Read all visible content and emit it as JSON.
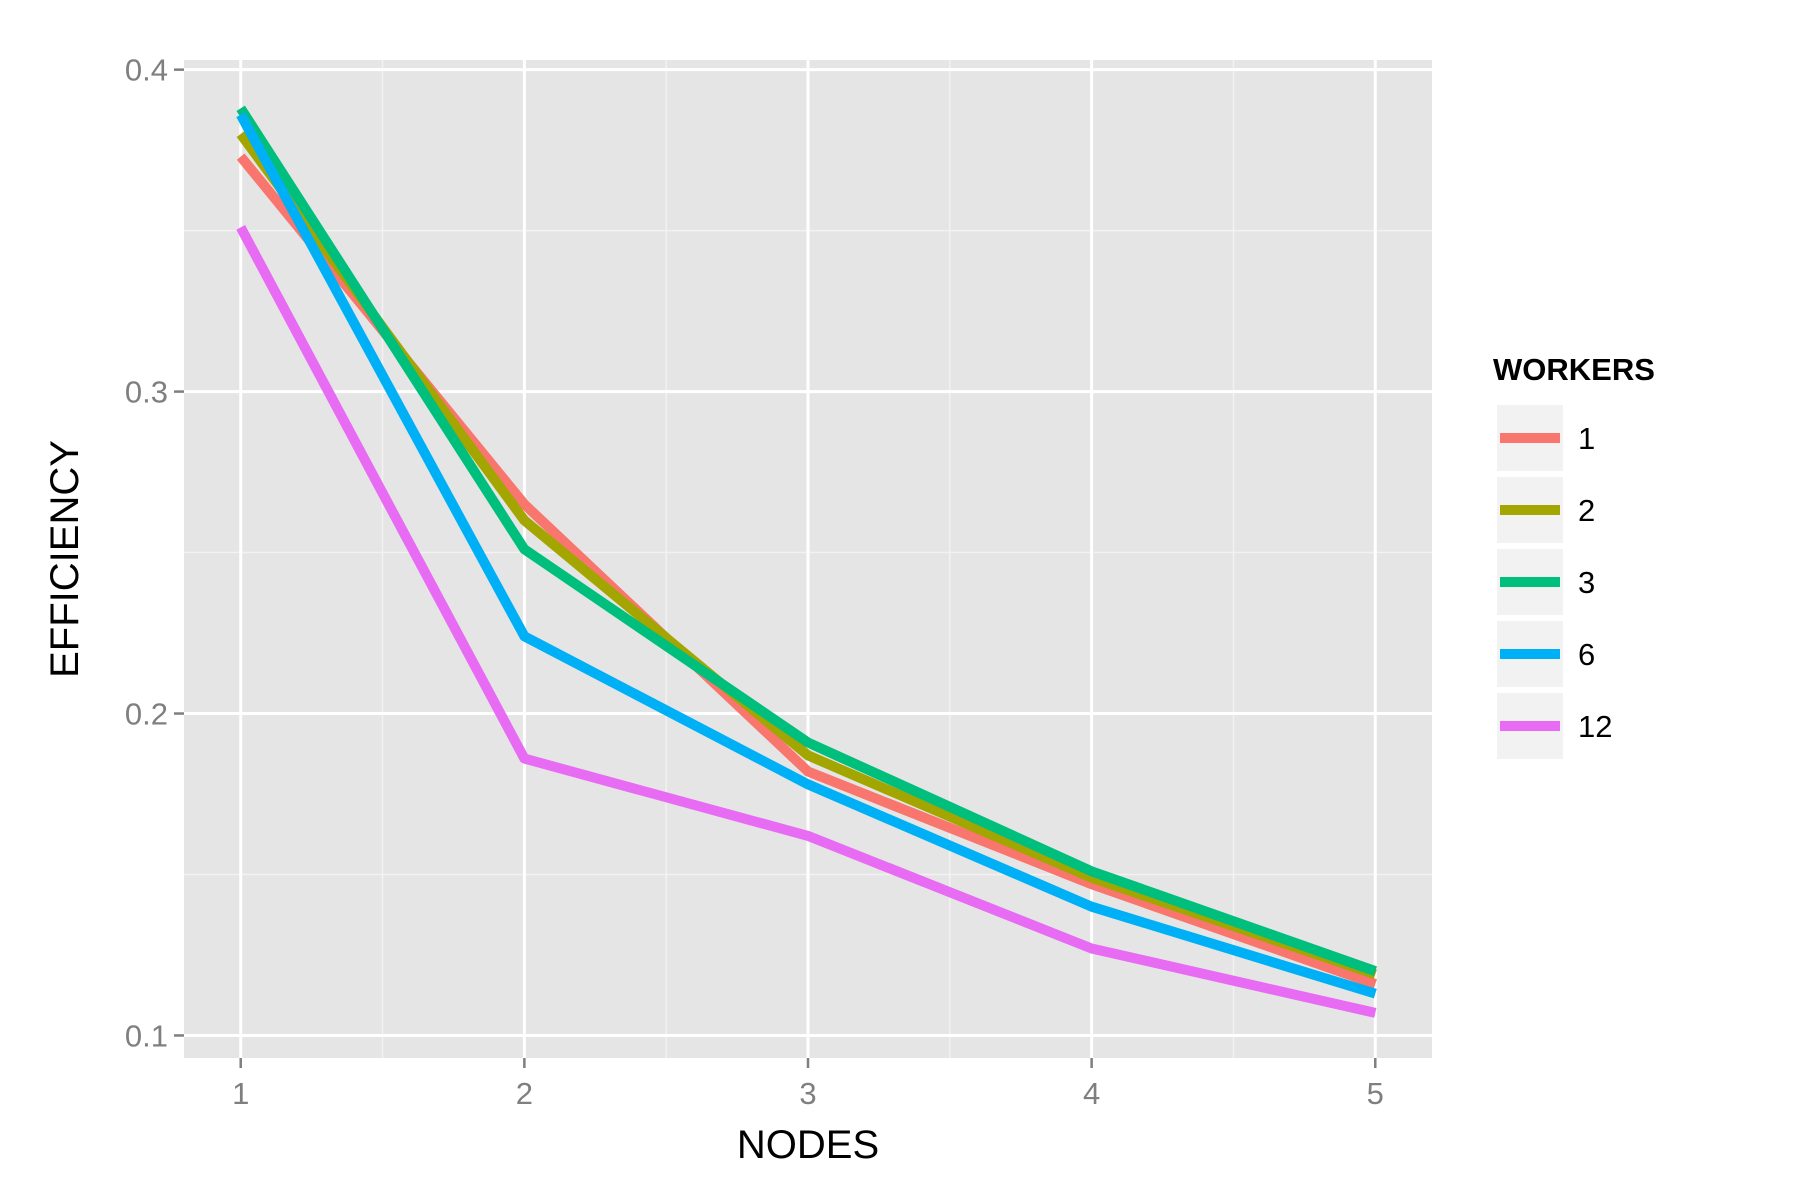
{
  "chart_data": {
    "type": "line",
    "xlabel": "NODES",
    "ylabel": "EFFICIENCY",
    "x": [
      1,
      2,
      3,
      4,
      5
    ],
    "x_tick_labels": [
      "1",
      "2",
      "3",
      "4",
      "5"
    ],
    "y_ticks": [
      0.1,
      0.2,
      0.3,
      0.4
    ],
    "y_tick_labels": [
      "0.1",
      "0.2",
      "0.3",
      "0.4"
    ],
    "xlim": [
      0.8,
      5.2
    ],
    "ylim": [
      0.093,
      0.403
    ],
    "grid": true,
    "background": "#e5e5e5",
    "legend": {
      "title": "WORKERS",
      "placement": "right"
    },
    "series": [
      {
        "name": "1",
        "color": "#f8766d",
        "values": [
          0.373,
          0.265,
          0.182,
          0.147,
          0.116
        ]
      },
      {
        "name": "2",
        "color": "#a3a500",
        "values": [
          0.38,
          0.26,
          0.187,
          0.149,
          0.119
        ]
      },
      {
        "name": "3",
        "color": "#00bf7d",
        "values": [
          0.388,
          0.251,
          0.191,
          0.151,
          0.12
        ]
      },
      {
        "name": "6",
        "color": "#00b0f6",
        "values": [
          0.386,
          0.224,
          0.178,
          0.14,
          0.113
        ]
      },
      {
        "name": "12",
        "color": "#e76bf3",
        "values": [
          0.351,
          0.186,
          0.162,
          0.127,
          0.107
        ]
      }
    ]
  }
}
